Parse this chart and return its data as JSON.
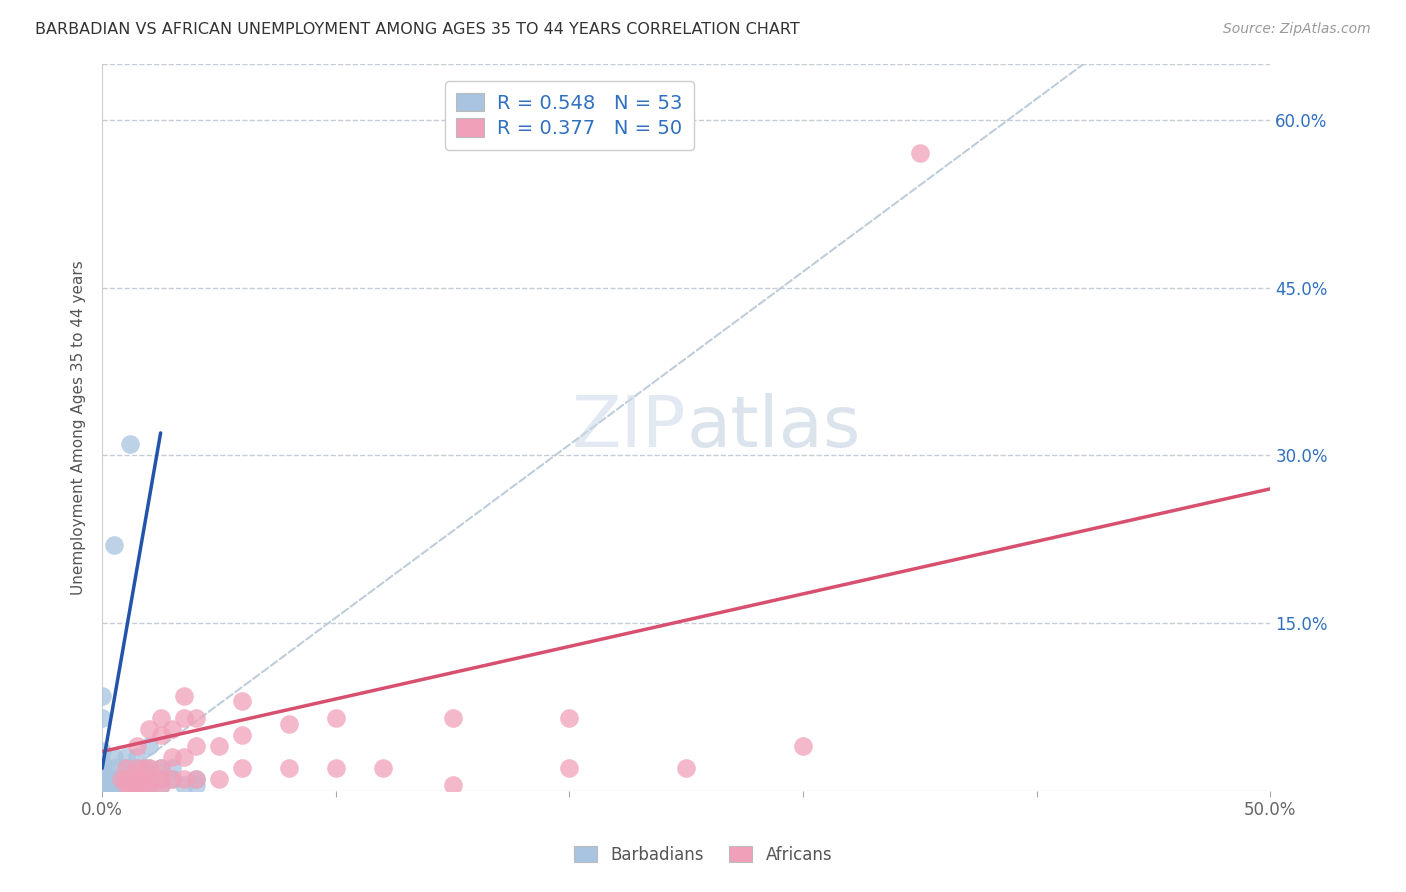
{
  "title": "BARBADIAN VS AFRICAN UNEMPLOYMENT AMONG AGES 35 TO 44 YEARS CORRELATION CHART",
  "source": "Source: ZipAtlas.com",
  "ylabel": "Unemployment Among Ages 35 to 44 years",
  "xlim": [
    0.0,
    0.5
  ],
  "ylim": [
    0.0,
    0.65
  ],
  "x_tick_positions": [
    0.0,
    0.1,
    0.2,
    0.3,
    0.4,
    0.5
  ],
  "x_tick_labels": [
    "0.0%",
    "",
    "",
    "",
    "",
    "50.0%"
  ],
  "y_tick_positions": [
    0.0,
    0.15,
    0.3,
    0.45,
    0.6
  ],
  "y_tick_labels": [
    "",
    "15.0%",
    "30.0%",
    "45.0%",
    "60.0%"
  ],
  "barbadian_color": "#a8c4e0",
  "african_color": "#f0a0b8",
  "barbadian_line_color": "#2255aa",
  "african_line_color": "#d85070",
  "trend_line_color": "#b8c8d8",
  "R_barbadian": 0.548,
  "N_barbadian": 53,
  "R_african": 0.377,
  "N_african": 50,
  "legend_text_color": "#3070c0",
  "barbadian_points": [
    [
      0.0,
      0.0
    ],
    [
      0.0,
      0.005
    ],
    [
      0.0,
      0.01
    ],
    [
      0.0,
      0.015
    ],
    [
      0.0,
      0.02
    ],
    [
      0.0,
      0.025
    ],
    [
      0.003,
      0.0
    ],
    [
      0.003,
      0.005
    ],
    [
      0.003,
      0.01
    ],
    [
      0.003,
      0.015
    ],
    [
      0.005,
      0.0
    ],
    [
      0.005,
      0.005
    ],
    [
      0.005,
      0.01
    ],
    [
      0.005,
      0.02
    ],
    [
      0.005,
      0.03
    ],
    [
      0.007,
      0.0
    ],
    [
      0.007,
      0.005
    ],
    [
      0.007,
      0.01
    ],
    [
      0.01,
      0.0
    ],
    [
      0.01,
      0.005
    ],
    [
      0.01,
      0.01
    ],
    [
      0.01,
      0.02
    ],
    [
      0.01,
      0.03
    ],
    [
      0.012,
      0.005
    ],
    [
      0.012,
      0.01
    ],
    [
      0.012,
      0.015
    ],
    [
      0.015,
      0.005
    ],
    [
      0.015,
      0.01
    ],
    [
      0.015,
      0.02
    ],
    [
      0.015,
      0.03
    ],
    [
      0.018,
      0.0
    ],
    [
      0.018,
      0.01
    ],
    [
      0.018,
      0.02
    ],
    [
      0.02,
      0.005
    ],
    [
      0.02,
      0.01
    ],
    [
      0.02,
      0.02
    ],
    [
      0.02,
      0.04
    ],
    [
      0.025,
      0.005
    ],
    [
      0.025,
      0.02
    ],
    [
      0.03,
      0.01
    ],
    [
      0.03,
      0.02
    ],
    [
      0.035,
      0.005
    ],
    [
      0.04,
      0.005
    ],
    [
      0.04,
      0.01
    ],
    [
      0.005,
      0.22
    ],
    [
      0.012,
      0.31
    ],
    [
      0.0,
      0.0
    ],
    [
      0.002,
      0.0
    ],
    [
      0.003,
      0.0
    ],
    [
      0.0,
      0.035
    ],
    [
      0.0,
      0.065
    ],
    [
      0.0,
      0.085
    ],
    [
      0.005,
      0.0
    ]
  ],
  "african_points": [
    [
      0.008,
      0.01
    ],
    [
      0.01,
      0.005
    ],
    [
      0.01,
      0.01
    ],
    [
      0.01,
      0.02
    ],
    [
      0.012,
      0.005
    ],
    [
      0.012,
      0.01
    ],
    [
      0.015,
      0.005
    ],
    [
      0.015,
      0.01
    ],
    [
      0.015,
      0.02
    ],
    [
      0.015,
      0.04
    ],
    [
      0.018,
      0.005
    ],
    [
      0.018,
      0.01
    ],
    [
      0.018,
      0.02
    ],
    [
      0.02,
      0.005
    ],
    [
      0.02,
      0.01
    ],
    [
      0.02,
      0.02
    ],
    [
      0.02,
      0.055
    ],
    [
      0.025,
      0.005
    ],
    [
      0.025,
      0.01
    ],
    [
      0.025,
      0.02
    ],
    [
      0.025,
      0.05
    ],
    [
      0.025,
      0.065
    ],
    [
      0.03,
      0.01
    ],
    [
      0.03,
      0.03
    ],
    [
      0.03,
      0.055
    ],
    [
      0.035,
      0.01
    ],
    [
      0.035,
      0.03
    ],
    [
      0.035,
      0.065
    ],
    [
      0.035,
      0.085
    ],
    [
      0.04,
      0.01
    ],
    [
      0.04,
      0.04
    ],
    [
      0.04,
      0.065
    ],
    [
      0.05,
      0.01
    ],
    [
      0.05,
      0.04
    ],
    [
      0.06,
      0.02
    ],
    [
      0.06,
      0.05
    ],
    [
      0.06,
      0.08
    ],
    [
      0.08,
      0.02
    ],
    [
      0.08,
      0.06
    ],
    [
      0.1,
      0.02
    ],
    [
      0.1,
      0.065
    ],
    [
      0.12,
      0.02
    ],
    [
      0.15,
      0.005
    ],
    [
      0.15,
      0.065
    ],
    [
      0.2,
      0.02
    ],
    [
      0.2,
      0.065
    ],
    [
      0.25,
      0.02
    ],
    [
      0.3,
      0.04
    ],
    [
      0.35,
      0.57
    ],
    [
      0.015,
      0.0
    ]
  ],
  "watermark_zip": "ZIP",
  "watermark_atlas": "atlas",
  "background_color": "#ffffff",
  "grid_color": "#c0c8d0"
}
